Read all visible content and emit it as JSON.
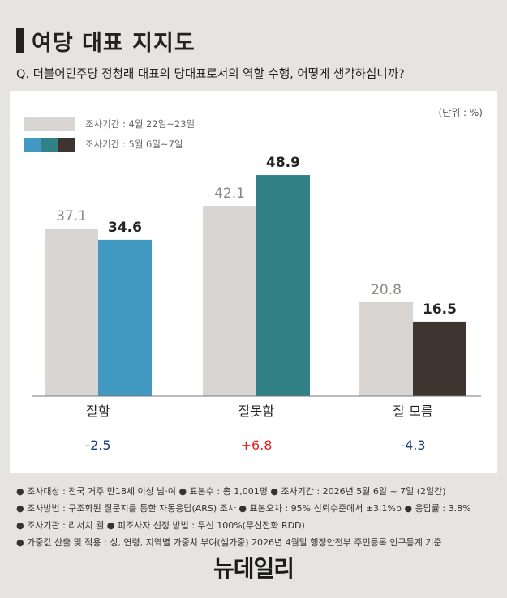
{
  "title": "여당 대표 지지도",
  "question": "Q. 더불어민주당 정청래 대표의 당대표로서의 역할 수행, 어떻게 생각하십니까?",
  "unit": "(단위 : %)",
  "colors": {
    "prev": "#d9d5d2",
    "now": [
      "#4299c2",
      "#318186",
      "#3e3530"
    ],
    "positive": "#e02020",
    "negative": "#1a3f7a"
  },
  "chart_data": {
    "type": "bar",
    "categories": [
      "잘함",
      "잘못함",
      "잘 모름"
    ],
    "series": [
      {
        "name": "조사기간 : 4월 22일~23일",
        "values": [
          37.1,
          42.1,
          20.8
        ]
      },
      {
        "name": "조사기간 : 5월 6일~7일",
        "values": [
          34.6,
          48.9,
          16.5
        ]
      }
    ],
    "changes": [
      "-2.5",
      "+6.8",
      "-4.3"
    ],
    "ylim": [
      0,
      55
    ]
  },
  "notes": [
    "● 조사대상 : 전국 거주 만18세 이상 남·여 ● 표본수 : 총 1,001명 ● 조사기간 : 2026년 5월 6일 ~ 7일 (2일간)",
    "● 조사방법 : 구조화된 질문지를 통한 자동응답(ARS) 조사 ● 표본오차 : 95% 신뢰수준에서 ±3.1%p ● 응답률 : 3.8%",
    "● 조사기관 : 리서치 웰 ● 피조사자 선정 방법 : 무선 100%(무선전화 RDD)",
    "● 가중값 산출 및 적용 : 성, 연령, 지역별 가중치 부여(셀가중) 2026년 4월말 행정안전부 주민등록 인구통계 기준"
  ],
  "logo": "뉴데일리"
}
